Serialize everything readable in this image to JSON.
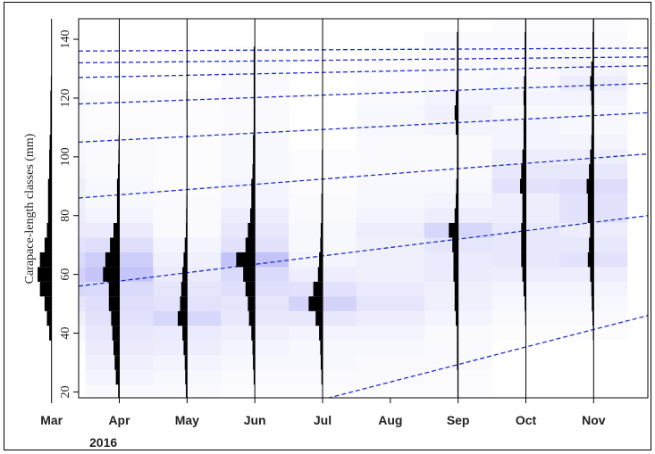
{
  "chart_data": {
    "type": "heatmap",
    "title": "",
    "xlabel": "",
    "ylabel": "Carapace-length classes (mm)",
    "year_label": "2016",
    "xlim": [
      0.4,
      8.8
    ],
    "ylim": [
      18,
      147
    ],
    "bin_width": 5,
    "months": [
      "Mar",
      "Apr",
      "May",
      "Jun",
      "Jul",
      "Aug",
      "Sep",
      "Oct",
      "Nov"
    ],
    "month_index": [
      0,
      1,
      2,
      3,
      4,
      5,
      6,
      7,
      8
    ],
    "y_ticks": [
      20,
      40,
      60,
      80,
      100,
      120,
      140
    ],
    "colors": {
      "cell": "#6f6ff0",
      "histogram": "#000000",
      "curve": "#1f2fcf",
      "axis": "#000000"
    },
    "grid": false,
    "legend": "none",
    "sample_months": [
      0,
      1,
      2,
      3,
      4,
      6,
      7,
      8
    ],
    "bin_centers": [
      20,
      25,
      30,
      35,
      40,
      45,
      50,
      55,
      60,
      65,
      70,
      75,
      80,
      85,
      90,
      95,
      100,
      105,
      110,
      115,
      120,
      125,
      130,
      135,
      140,
      145
    ],
    "frequency_profiles": [
      [
        0,
        0,
        0,
        0,
        1,
        2,
        3,
        5,
        6,
        5,
        3,
        2,
        1.5,
        1.5,
        1.5,
        1,
        1,
        0.8,
        0.5,
        0.5,
        0.5,
        0.3,
        0,
        0,
        0,
        0
      ],
      [
        0.5,
        1.5,
        2,
        2.5,
        3,
        3.5,
        4.5,
        4.5,
        7,
        6,
        4,
        2.5,
        1,
        1,
        1,
        0.6,
        0.4,
        0.3,
        0,
        0,
        0,
        0,
        0,
        0,
        0,
        0
      ],
      [
        0.5,
        0.8,
        1,
        1.5,
        2,
        4,
        3,
        2.5,
        2,
        1.5,
        1,
        0.5,
        0.4,
        0.3,
        0.2,
        0.2,
        0.2,
        0.2,
        0.1,
        0.2,
        0.2,
        0,
        0,
        0,
        0,
        0
      ],
      [
        0,
        0.5,
        0.8,
        1,
        1.5,
        2.5,
        3,
        4,
        5,
        8,
        4,
        3,
        2,
        1.5,
        1.5,
        1,
        0.8,
        0.8,
        0.5,
        0.5,
        0.5,
        0.5,
        0.5,
        0.5,
        0,
        0
      ],
      [
        0,
        0.5,
        0.8,
        1,
        1.5,
        3,
        6,
        4,
        2,
        1.5,
        1,
        0.8,
        0.5,
        0.5,
        0.3,
        0.3,
        0.3,
        0,
        0,
        0,
        0,
        0,
        0,
        0,
        0,
        0
      ],
      [
        0,
        0,
        0,
        0,
        0,
        0,
        0,
        0,
        0,
        0,
        0,
        0,
        0,
        0,
        0,
        0,
        0,
        0,
        0,
        0,
        0,
        0,
        0,
        0,
        0,
        0
      ],
      [
        0.3,
        0.3,
        0.5,
        0.5,
        0.5,
        1,
        1.5,
        1.5,
        2,
        2,
        2.5,
        4,
        1.5,
        1,
        0.8,
        0.5,
        0.5,
        0.5,
        1,
        1.5,
        1,
        0.5,
        0.5,
        0.5,
        0.5,
        0
      ],
      [
        0,
        0,
        0,
        0,
        0,
        0.3,
        0.5,
        1,
        1.5,
        2,
        2,
        2,
        1.5,
        1.5,
        2.5,
        2,
        1.5,
        1,
        1,
        0.8,
        1,
        0.8,
        0.5,
        0.5,
        0.5,
        0.3
      ],
      [
        0,
        0,
        0,
        0,
        0.3,
        0.5,
        0.8,
        1,
        1.5,
        2.5,
        2,
        1.5,
        2.5,
        2.5,
        3,
        2,
        1.5,
        1,
        0.8,
        0.8,
        1,
        1.5,
        1,
        0.5,
        0.5,
        0.3
      ]
    ],
    "shading_rows": [
      [
        0.0,
        0.0,
        0.0,
        0.02,
        0.06,
        0.1,
        0.18,
        0.28,
        0.32,
        0.26,
        0.2,
        0.14,
        0.12,
        0.1,
        0.1,
        0.08,
        0.06,
        0.06,
        0.04,
        0.04,
        0.04,
        0.02,
        0.02,
        0.0,
        0.0,
        0.0
      ],
      [
        0.04,
        0.08,
        0.1,
        0.14,
        0.16,
        0.2,
        0.22,
        0.26,
        0.4,
        0.34,
        0.22,
        0.14,
        0.08,
        0.06,
        0.06,
        0.04,
        0.04,
        0.04,
        0.02,
        0.02,
        0.02,
        0.0,
        0.0,
        0.0,
        0.0,
        0.0
      ],
      [
        0.04,
        0.06,
        0.08,
        0.12,
        0.14,
        0.28,
        0.2,
        0.18,
        0.14,
        0.1,
        0.08,
        0.04,
        0.04,
        0.04,
        0.02,
        0.02,
        0.02,
        0.02,
        0.02,
        0.02,
        0.02,
        0.0,
        0.0,
        0.0,
        0.0,
        0.0
      ],
      [
        0.02,
        0.04,
        0.06,
        0.08,
        0.1,
        0.16,
        0.18,
        0.22,
        0.26,
        0.42,
        0.2,
        0.16,
        0.12,
        0.08,
        0.08,
        0.06,
        0.06,
        0.06,
        0.04,
        0.04,
        0.04,
        0.04,
        0.04,
        0.02,
        0.0,
        0.0
      ],
      [
        0.02,
        0.04,
        0.06,
        0.06,
        0.08,
        0.16,
        0.3,
        0.2,
        0.12,
        0.08,
        0.06,
        0.06,
        0.04,
        0.04,
        0.02,
        0.02,
        0.02,
        0.0,
        0.0,
        0.0,
        0.0,
        0.0,
        0.0,
        0.0,
        0.0,
        0.0
      ],
      [
        0.02,
        0.04,
        0.04,
        0.06,
        0.08,
        0.12,
        0.18,
        0.14,
        0.1,
        0.1,
        0.1,
        0.12,
        0.08,
        0.06,
        0.06,
        0.04,
        0.04,
        0.04,
        0.06,
        0.06,
        0.04,
        0.02,
        0.02,
        0.02,
        0.0,
        0.0
      ],
      [
        0.02,
        0.02,
        0.04,
        0.04,
        0.04,
        0.08,
        0.1,
        0.1,
        0.14,
        0.14,
        0.18,
        0.28,
        0.12,
        0.08,
        0.06,
        0.04,
        0.04,
        0.04,
        0.08,
        0.1,
        0.08,
        0.04,
        0.04,
        0.04,
        0.04,
        0.0
      ],
      [
        0.0,
        0.0,
        0.0,
        0.0,
        0.02,
        0.04,
        0.06,
        0.08,
        0.12,
        0.16,
        0.16,
        0.16,
        0.12,
        0.12,
        0.2,
        0.16,
        0.12,
        0.08,
        0.08,
        0.06,
        0.08,
        0.06,
        0.04,
        0.04,
        0.04,
        0.02
      ],
      [
        0.0,
        0.0,
        0.0,
        0.0,
        0.02,
        0.04,
        0.06,
        0.08,
        0.12,
        0.2,
        0.16,
        0.12,
        0.2,
        0.2,
        0.24,
        0.16,
        0.12,
        0.08,
        0.06,
        0.06,
        0.08,
        0.12,
        0.08,
        0.04,
        0.04,
        0.02
      ]
    ],
    "growth_curves": [
      {
        "x": [
          0.4,
          8.8
        ],
        "y": [
          -4,
          46
        ]
      },
      {
        "x": [
          0.4,
          8.8
        ],
        "y": [
          56,
          80
        ]
      },
      {
        "x": [
          0.4,
          8.8
        ],
        "y": [
          86,
          101
        ]
      },
      {
        "x": [
          0.4,
          8.8
        ],
        "y": [
          105,
          115
        ]
      },
      {
        "x": [
          0.4,
          8.8
        ],
        "y": [
          118,
          125
        ]
      },
      {
        "x": [
          0.4,
          8.8
        ],
        "y": [
          127,
          131
        ]
      },
      {
        "x": [
          0.4,
          8.8
        ],
        "y": [
          132,
          134
        ]
      },
      {
        "x": [
          0.4,
          8.8
        ],
        "y": [
          136,
          137
        ]
      }
    ]
  }
}
